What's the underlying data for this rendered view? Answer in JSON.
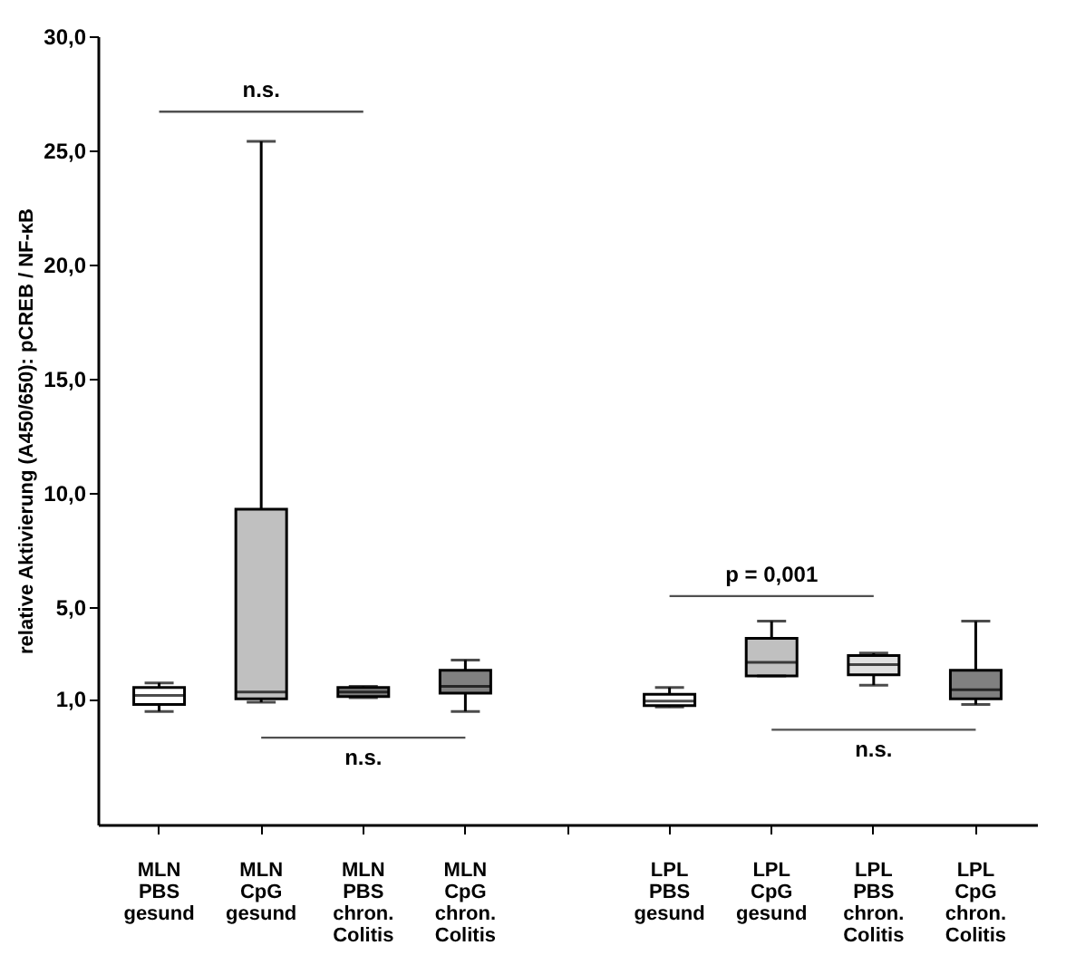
{
  "chart_data": {
    "type": "box",
    "ylabel": "relative Aktivierung (A450/650): pCREB / NF-κB",
    "categories": [
      "MLN\nPBS\ngesund",
      "MLN\nCpG\ngesund",
      "MLN\nPBS\nchron.\nColitis",
      "MLN\nCpG\nchron.\nColitis",
      "LPL\nPBS\ngesund",
      "LPL\nCpG\ngesund",
      "LPL\nPBS\nchron.\nColitis",
      "LPL\nCpG\nchron.\nColitis"
    ],
    "colors": [
      "#ffffff",
      "#c0c0c0",
      "#808080",
      "#808080",
      "#ffffff",
      "#c0c0c0",
      "#e0e0e0",
      "#808080"
    ],
    "boxes": [
      {
        "low": 0.45,
        "q1": 0.75,
        "median": 1.15,
        "q3": 1.5,
        "high": 1.7
      },
      {
        "low": 0.85,
        "q1": 1.0,
        "median": 1.3,
        "q3": 9.3,
        "high": 25.4
      },
      {
        "low": 1.05,
        "q1": 1.1,
        "median": 1.3,
        "q3": 1.5,
        "high": 1.55
      },
      {
        "low": 0.45,
        "q1": 1.25,
        "median": 1.55,
        "q3": 2.25,
        "high": 2.7
      },
      {
        "low": 0.65,
        "q1": 0.7,
        "median": 0.9,
        "q3": 1.2,
        "high": 1.5
      },
      {
        "low": 2.0,
        "q1": 2.0,
        "median": 2.6,
        "q3": 3.65,
        "high": 4.4
      },
      {
        "low": 1.6,
        "q1": 2.05,
        "median": 2.5,
        "q3": 2.9,
        "high": 3.0
      },
      {
        "low": 0.75,
        "q1": 1.0,
        "median": 1.4,
        "q3": 2.25,
        "high": 4.4
      }
    ],
    "ylim": [
      -4.5,
      30
    ],
    "yticks": [
      {
        "value": 1,
        "label": "1,0"
      },
      {
        "value": 5,
        "label": "5,0"
      },
      {
        "value": 10,
        "label": "10,0"
      },
      {
        "value": 15,
        "label": "15,0"
      },
      {
        "value": 20,
        "label": "20,0"
      },
      {
        "value": 25,
        "label": "25,0"
      },
      {
        "value": 30,
        "label": "30,0"
      }
    ],
    "annotations": [
      "n.s.",
      "n.s.",
      "p = 0,001",
      "n.s."
    ],
    "grid": false
  }
}
